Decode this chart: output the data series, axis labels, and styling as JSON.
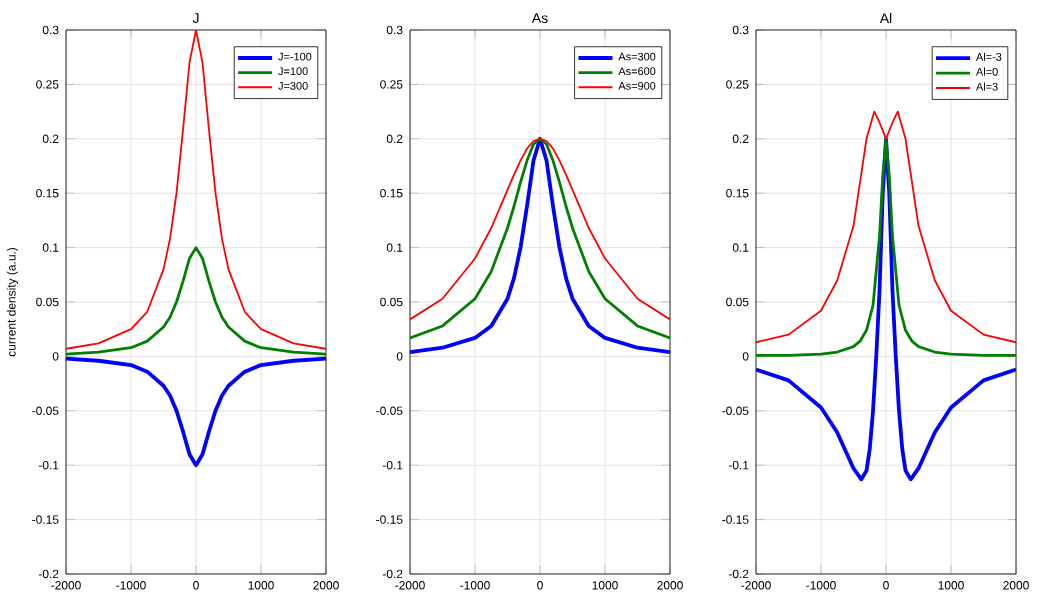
{
  "chart_data": [
    {
      "type": "line",
      "title": "J",
      "ylabel": "current density (a.u.)",
      "xlim": [
        -2000,
        2000
      ],
      "ylim": [
        -0.2,
        0.3
      ],
      "xticks": [
        -2000,
        -1000,
        0,
        1000,
        2000
      ],
      "yticks": [
        -0.2,
        -0.15,
        -0.1,
        -0.05,
        0,
        0.05,
        0.1,
        0.15,
        0.2,
        0.25,
        0.3
      ],
      "grid": true,
      "legend": "top right",
      "series": [
        {
          "name": "J=-100",
          "color": "#0000ff",
          "x": [
            -2000,
            -1500,
            -1000,
            -750,
            -500,
            -400,
            -300,
            -200,
            -100,
            0,
            100,
            200,
            300,
            400,
            500,
            750,
            1000,
            1500,
            2000
          ],
          "values": [
            -0.002,
            -0.004,
            -0.008,
            -0.014,
            -0.027,
            -0.036,
            -0.05,
            -0.069,
            -0.09,
            -0.1,
            -0.09,
            -0.069,
            -0.05,
            -0.036,
            -0.027,
            -0.014,
            -0.008,
            -0.004,
            -0.002
          ]
        },
        {
          "name": "J=100",
          "color": "#008000",
          "x": [
            -2000,
            -1500,
            -1000,
            -750,
            -500,
            -400,
            -300,
            -200,
            -100,
            0,
            100,
            200,
            300,
            400,
            500,
            750,
            1000,
            1500,
            2000
          ],
          "values": [
            0.002,
            0.004,
            0.008,
            0.014,
            0.027,
            0.036,
            0.05,
            0.069,
            0.09,
            0.1,
            0.09,
            0.069,
            0.05,
            0.036,
            0.027,
            0.014,
            0.008,
            0.004,
            0.002
          ]
        },
        {
          "name": "J=300",
          "color": "#ff0000",
          "x": [
            -2000,
            -1500,
            -1000,
            -750,
            -500,
            -400,
            -300,
            -200,
            -100,
            0,
            100,
            200,
            300,
            400,
            500,
            750,
            1000,
            1500,
            2000
          ],
          "values": [
            0.007,
            0.012,
            0.025,
            0.041,
            0.08,
            0.108,
            0.15,
            0.208,
            0.27,
            0.3,
            0.27,
            0.208,
            0.15,
            0.108,
            0.08,
            0.041,
            0.025,
            0.012,
            0.007
          ]
        }
      ]
    },
    {
      "type": "line",
      "title": "As",
      "xlim": [
        -2000,
        2000
      ],
      "ylim": [
        -0.2,
        0.3
      ],
      "xticks": [
        -2000,
        -1000,
        0,
        1000,
        2000
      ],
      "yticks": [
        -0.2,
        -0.15,
        -0.1,
        -0.05,
        0,
        0.05,
        0.1,
        0.15,
        0.2,
        0.25,
        0.3
      ],
      "grid": true,
      "legend": "top right",
      "series": [
        {
          "name": "As=300",
          "color": "#0000ff",
          "x": [
            -2000,
            -1500,
            -1000,
            -750,
            -500,
            -400,
            -300,
            -200,
            -100,
            0,
            100,
            200,
            300,
            400,
            500,
            750,
            1000,
            1500,
            2000
          ],
          "values": [
            0.004,
            0.008,
            0.017,
            0.028,
            0.053,
            0.072,
            0.1,
            0.138,
            0.18,
            0.2,
            0.18,
            0.138,
            0.1,
            0.072,
            0.053,
            0.028,
            0.017,
            0.008,
            0.004
          ]
        },
        {
          "name": "As=600",
          "color": "#008000",
          "x": [
            -2000,
            -1500,
            -1000,
            -750,
            -500,
            -400,
            -300,
            -200,
            -100,
            0,
            100,
            200,
            300,
            400,
            500,
            750,
            1000,
            1500,
            2000
          ],
          "values": [
            0.017,
            0.028,
            0.053,
            0.078,
            0.118,
            0.138,
            0.16,
            0.18,
            0.195,
            0.2,
            0.195,
            0.18,
            0.16,
            0.138,
            0.118,
            0.078,
            0.053,
            0.028,
            0.017
          ]
        },
        {
          "name": "As=900",
          "color": "#ff0000",
          "x": [
            -2000,
            -1500,
            -1000,
            -750,
            -500,
            -400,
            -300,
            -200,
            -100,
            0,
            100,
            200,
            300,
            400,
            500,
            750,
            1000,
            1500,
            2000
          ],
          "values": [
            0.034,
            0.053,
            0.09,
            0.118,
            0.153,
            0.167,
            0.18,
            0.191,
            0.198,
            0.2,
            0.198,
            0.191,
            0.18,
            0.167,
            0.153,
            0.118,
            0.09,
            0.053,
            0.034
          ]
        }
      ]
    },
    {
      "type": "line",
      "title": "Al",
      "xlim": [
        -2000,
        2000
      ],
      "ylim": [
        -0.2,
        0.3
      ],
      "xticks": [
        -2000,
        -1000,
        0,
        1000,
        2000
      ],
      "yticks": [
        -0.2,
        -0.15,
        -0.1,
        -0.05,
        0,
        0.05,
        0.1,
        0.15,
        0.2,
        0.25,
        0.3
      ],
      "grid": true,
      "legend": "top right",
      "series": [
        {
          "name": "Al=-3",
          "color": "#0000ff",
          "x": [
            -2000,
            -1500,
            -1000,
            -750,
            -500,
            -380,
            -300,
            -250,
            -200,
            -150,
            -100,
            -50,
            0,
            50,
            100,
            150,
            200,
            250,
            300,
            380,
            500,
            750,
            1000,
            1500,
            2000
          ],
          "values": [
            -0.012,
            -0.022,
            -0.047,
            -0.07,
            -0.103,
            -0.113,
            -0.105,
            -0.085,
            -0.05,
            0,
            0.06,
            0.15,
            0.2,
            0.15,
            0.06,
            0,
            -0.05,
            -0.085,
            -0.105,
            -0.113,
            -0.103,
            -0.07,
            -0.047,
            -0.022,
            -0.012
          ]
        },
        {
          "name": "Al=0",
          "color": "#008000",
          "x": [
            -2000,
            -1500,
            -1000,
            -750,
            -500,
            -400,
            -300,
            -200,
            -100,
            -50,
            0,
            50,
            100,
            200,
            300,
            400,
            500,
            750,
            1000,
            1500,
            2000
          ],
          "values": [
            0.001,
            0.001,
            0.002,
            0.004,
            0.009,
            0.014,
            0.024,
            0.047,
            0.11,
            0.166,
            0.2,
            0.166,
            0.11,
            0.047,
            0.024,
            0.014,
            0.009,
            0.004,
            0.002,
            0.001,
            0.001
          ]
        },
        {
          "name": "Al=3",
          "color": "#ff0000",
          "x": [
            -2000,
            -1500,
            -1000,
            -750,
            -500,
            -400,
            -300,
            -180,
            -100,
            0,
            100,
            180,
            300,
            400,
            500,
            750,
            1000,
            1500,
            2000
          ],
          "values": [
            0.013,
            0.02,
            0.042,
            0.07,
            0.12,
            0.16,
            0.2,
            0.225,
            0.215,
            0.2,
            0.215,
            0.225,
            0.2,
            0.16,
            0.12,
            0.07,
            0.042,
            0.02,
            0.013
          ]
        }
      ]
    }
  ]
}
